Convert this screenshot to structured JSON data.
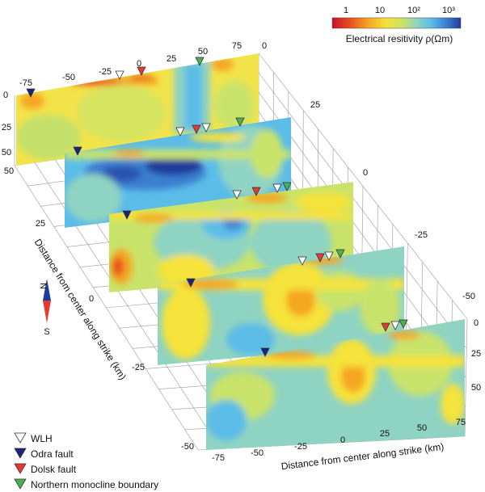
{
  "colorbar": {
    "title": "Electrical resitivity ρ(Ωm)",
    "ticks": [
      "1",
      "10",
      "10²",
      "10³"
    ],
    "colors": [
      "#c8102e",
      "#e8501c",
      "#f5a623",
      "#f5e23a",
      "#c9e36a",
      "#8fd3c2",
      "#5bbce8",
      "#3a7fd0",
      "#1f3c9a"
    ]
  },
  "top_axis": {
    "ticks": [
      "-75",
      "-50",
      "-25",
      "0",
      "25",
      "50",
      "75",
      "0"
    ]
  },
  "bottom_axis": {
    "label": "Distance from center along strike (km)",
    "ticks": [
      "-75",
      "-50",
      "-25",
      "0",
      "25",
      "50",
      "75"
    ]
  },
  "left_axis": {
    "label": "Distance from center along strike (km)",
    "ticks": [
      "50",
      "25",
      "0",
      "-25",
      "-50"
    ]
  },
  "depth_axis": {
    "ticks": [
      "0",
      "25",
      "50"
    ]
  },
  "right_axis": {
    "ticks": [
      "25",
      "0",
      "-25",
      "-50"
    ],
    "depth_ticks": [
      "0",
      "25",
      "50"
    ]
  },
  "compass": {
    "north": "N",
    "south": "S"
  },
  "legend": [
    {
      "label": "WLH",
      "color": "#ffffff"
    },
    {
      "label": "Odra fault",
      "color": "#1a237e"
    },
    {
      "label": "Dolsk fault",
      "color": "#e53935"
    },
    {
      "label": "Northern monocline boundary",
      "color": "#4caf50"
    }
  ]
}
